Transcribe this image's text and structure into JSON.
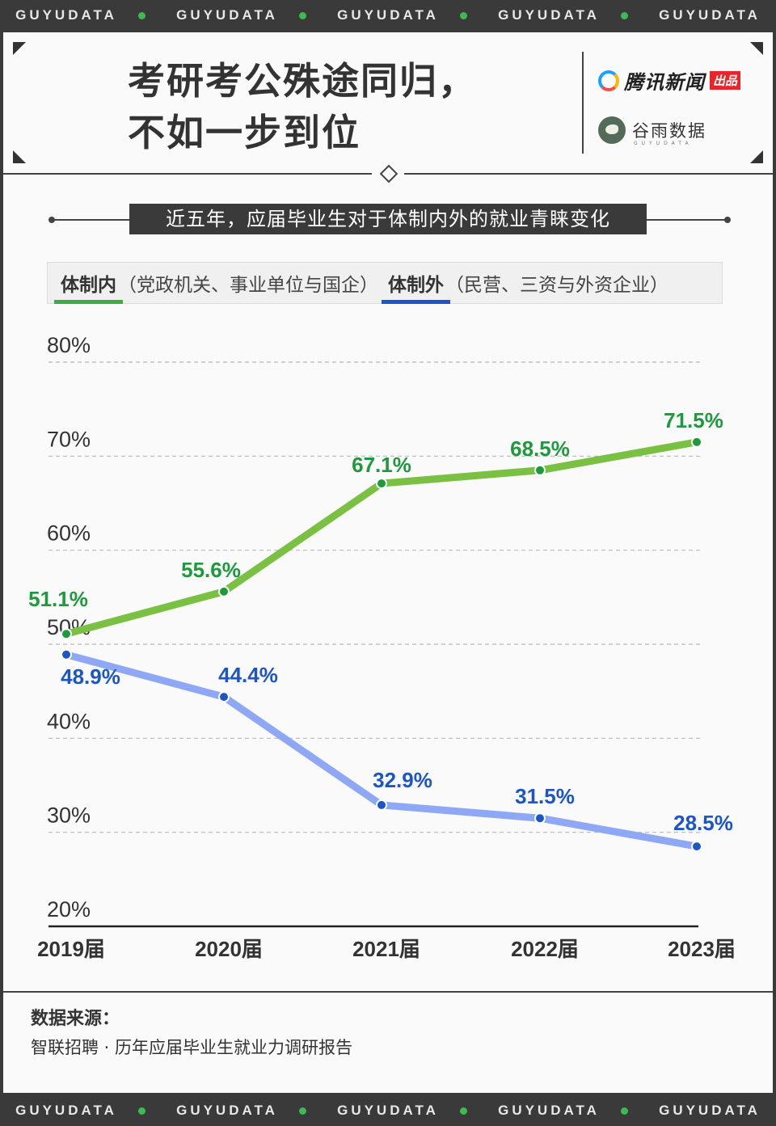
{
  "ticker": [
    "GUYUDATA",
    "GUYUDATA",
    "GUYUDATA",
    "GUYUDATA",
    "GUYUDATA"
  ],
  "header": {
    "title_line1": "考研考公殊途同归，",
    "title_line2": "不如一步到位",
    "brand1_name": "腾讯新闻",
    "brand1_tag": "出品",
    "brand2_name": "谷雨数据",
    "brand2_en": "GUYUDATA"
  },
  "subtitle": "近五年，应届毕业生对于体制内外的就业青睐变化",
  "legend": {
    "inside_name": "体制内",
    "inside_desc": "（党政机关、事业单位与国企）",
    "outside_name": "体制外",
    "outside_desc": "（民营、三资与外资企业）"
  },
  "colors": {
    "inside_line": "#7ac143",
    "inside_label": "#1d9a3c",
    "outside_line": "#8fa8f5",
    "outside_label": "#1c55c8",
    "accent_green": "#3dae3d",
    "accent_blue": "#1c55c8"
  },
  "chart_data": {
    "type": "line",
    "categories": [
      "2019届",
      "2020届",
      "2021届",
      "2022届",
      "2023届"
    ],
    "series": [
      {
        "name": "体制内",
        "values": [
          51.1,
          55.6,
          67.1,
          68.5,
          71.5
        ],
        "labels": [
          "51.1%",
          "55.6%",
          "67.1%",
          "68.5%",
          "71.5%"
        ]
      },
      {
        "name": "体制外",
        "values": [
          48.9,
          44.4,
          32.9,
          31.5,
          28.5
        ],
        "labels": [
          "48.9%",
          "44.4%",
          "32.9%",
          "31.5%",
          "28.5%"
        ]
      }
    ],
    "y_ticks": [
      "80%",
      "70%",
      "60%",
      "50%",
      "40%",
      "30%",
      "20%"
    ],
    "ylim": [
      20,
      80
    ],
    "grid": "dashed horizontal"
  },
  "source": {
    "label": "数据来源：",
    "text": "智联招聘 · 历年应届毕业生就业力调研报告"
  }
}
